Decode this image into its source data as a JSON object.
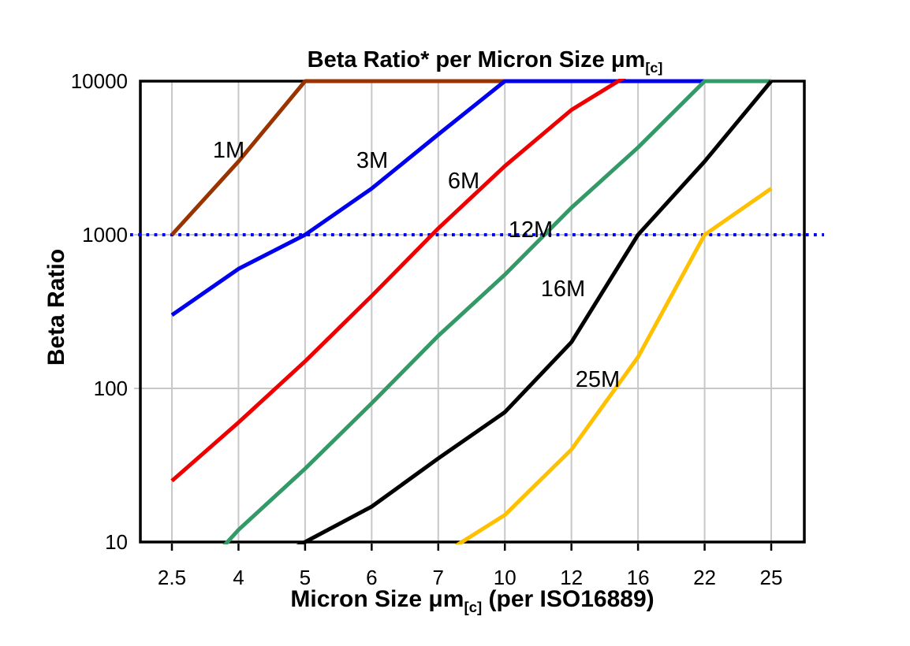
{
  "title": {
    "before_sub": "Beta Ratio* per Micron Size μm",
    "subscript": "[c]",
    "full": "Beta Ratio* per Micron Size μm[c]"
  },
  "y_axis": {
    "title": "Beta Ratio",
    "ticks": [
      {
        "label": "10000",
        "value": 10000
      },
      {
        "label": "1000",
        "value": 1000
      },
      {
        "label": "100",
        "value": 100
      },
      {
        "label": "10",
        "value": 10
      }
    ]
  },
  "x_axis": {
    "before_sub": "Micron Size μm",
    "subscript": "[c]",
    "after_sub": " (per ISO16889)",
    "full": "Micron Size μm[c] (per ISO16889)",
    "tick_labels": [
      "2.5",
      "4",
      "5",
      "6",
      "7",
      "10",
      "12",
      "16",
      "22",
      "25"
    ]
  },
  "reference_line": {
    "value": 1000,
    "color": "#0000ee",
    "style": "square-dotted"
  },
  "colors": {
    "grid": "#c8c8c8",
    "axis_border": "#000000",
    "text": "#000000",
    "background": "#ffffff"
  },
  "chart_data": {
    "type": "line",
    "title": "Beta Ratio* per Micron Size μm[c]",
    "xlabel": "Micron Size μm[c] (per ISO16889)",
    "ylabel": "Beta Ratio",
    "x_scale": "category",
    "y_scale": "log",
    "ylim": [
      10,
      10000
    ],
    "clip_at_limits": true,
    "grid": true,
    "legend": "inline-series-labels",
    "categories": [
      "2.5",
      "4",
      "5",
      "6",
      "7",
      "10",
      "12",
      "16",
      "22",
      "25"
    ],
    "series": [
      {
        "name": "1M",
        "color": "#993300",
        "label_color": "#aa6a3a",
        "label_pos": [
          290,
          190
        ],
        "values": [
          1000,
          3000,
          10000,
          10000,
          10000,
          10000,
          10000,
          10000,
          10000,
          10000
        ]
      },
      {
        "name": "3M",
        "color": "#0000ee",
        "label_color": "#0000ee",
        "label_pos": [
          472,
          203
        ],
        "values": [
          300,
          600,
          1000,
          2000,
          4500,
          10000,
          10000,
          10000,
          10000,
          10000
        ]
      },
      {
        "name": "6M",
        "color": "#ee0000",
        "label_color": "#ee0000",
        "label_pos": [
          588,
          229
        ],
        "values": [
          25,
          60,
          150,
          400,
          1100,
          2800,
          6500,
          12000,
          null,
          null
        ]
      },
      {
        "name": "12M",
        "color": "#339966",
        "label_color": "#009933",
        "label_pos": [
          673,
          291
        ],
        "values": [
          4,
          12,
          30,
          80,
          220,
          550,
          1500,
          3700,
          10000,
          10000
        ]
      },
      {
        "name": "16M",
        "color": "#000000",
        "label_color": "#000000",
        "label_pos": [
          714,
          366
        ],
        "values": [
          null,
          6,
          10,
          17,
          35,
          70,
          200,
          1000,
          3000,
          10000
        ]
      },
      {
        "name": "25M",
        "color": "#ffc000",
        "label_color": "#ffc000",
        "label_pos": [
          758,
          481
        ],
        "values": [
          null,
          null,
          null,
          null,
          8,
          15,
          40,
          160,
          1000,
          2000
        ]
      }
    ]
  }
}
